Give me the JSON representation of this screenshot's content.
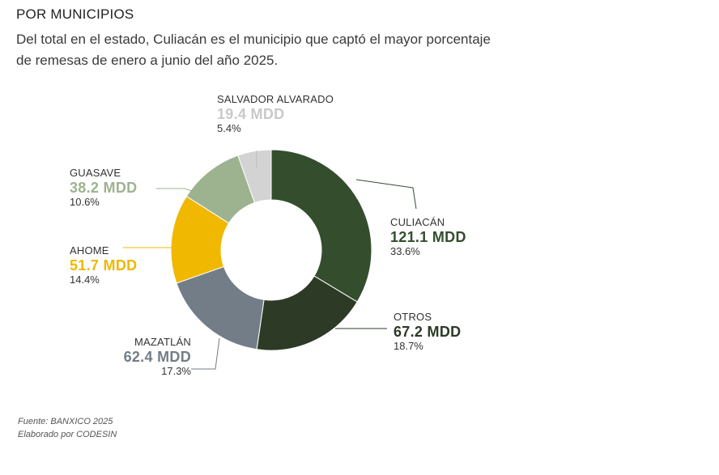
{
  "header": {
    "title": "POR MUNICIPIOS",
    "subtitle": "Del total en el estado, Culiacán es el municipio que captó el mayor porcentaje de remesas de enero a junio del año 2025."
  },
  "source": {
    "line1": "Fuente: BANXICO 2025",
    "line2": "Elaborado por CODESIN"
  },
  "chart_data": {
    "type": "pie",
    "style": "donut",
    "unit": "MDD",
    "slices": [
      {
        "label": "CULIACÁN",
        "value": 121.1,
        "value_text": "121.1 MDD",
        "percent": 33.6,
        "percent_text": "33.6%",
        "color": "#334d2d"
      },
      {
        "label": "OTROS",
        "value": 67.2,
        "value_text": "67.2 MDD",
        "percent": 18.7,
        "percent_text": "18.7%",
        "color": "#2c3a26"
      },
      {
        "label": "MAZATLÁN",
        "value": 62.4,
        "value_text": "62.4 MDD",
        "percent": 17.3,
        "percent_text": "17.3%",
        "color": "#737d87"
      },
      {
        "label": "AHOME",
        "value": 51.7,
        "value_text": "51.7 MDD",
        "percent": 14.4,
        "percent_text": "14.4%",
        "color": "#f0b800"
      },
      {
        "label": "GUASAVE",
        "value": 38.2,
        "value_text": "38.2 MDD",
        "percent": 10.6,
        "percent_text": "10.6%",
        "color": "#9db38f"
      },
      {
        "label": "SALVADOR ALVARADO",
        "value": 19.4,
        "value_text": "19.4 MDD",
        "percent": 5.4,
        "percent_text": "5.4%",
        "color": "#d3d3d3"
      }
    ]
  }
}
